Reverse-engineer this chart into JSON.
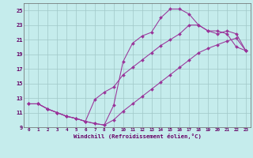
{
  "xlabel": "Windchill (Refroidissement éolien,°C)",
  "bg_color": "#c5ecec",
  "grid_color": "#a0c8c8",
  "line_color": "#993399",
  "xlim": [
    -0.5,
    23.5
  ],
  "ylim": [
    9,
    26
  ],
  "xticks": [
    0,
    1,
    2,
    3,
    4,
    5,
    6,
    7,
    8,
    9,
    10,
    11,
    12,
    13,
    14,
    15,
    16,
    17,
    18,
    19,
    20,
    21,
    22,
    23
  ],
  "yticks": [
    9,
    11,
    13,
    15,
    17,
    19,
    21,
    23,
    25
  ],
  "line1_x": [
    0,
    1,
    2,
    3,
    4,
    5,
    6,
    7,
    8,
    9,
    10,
    11,
    12,
    13,
    14,
    15,
    16,
    17,
    18,
    19,
    20,
    21,
    22,
    23
  ],
  "line1_y": [
    12.2,
    12.2,
    11.5,
    11.0,
    10.5,
    10.2,
    9.8,
    9.5,
    9.3,
    12.0,
    18.0,
    20.5,
    21.5,
    22.0,
    24.0,
    25.2,
    25.2,
    24.5,
    23.0,
    22.2,
    22.2,
    21.8,
    20.0,
    19.5
  ],
  "line2_x": [
    0,
    1,
    2,
    3,
    4,
    5,
    6,
    7,
    8,
    9,
    10,
    11,
    12,
    13,
    14,
    15,
    16,
    17,
    18,
    19,
    20,
    21,
    22,
    23
  ],
  "line2_y": [
    12.2,
    12.2,
    11.5,
    11.0,
    10.5,
    10.2,
    9.8,
    12.8,
    13.8,
    14.5,
    16.2,
    17.2,
    18.2,
    19.2,
    20.2,
    21.0,
    21.8,
    23.0,
    23.0,
    22.2,
    21.8,
    22.2,
    21.8,
    19.5
  ],
  "line3_x": [
    0,
    1,
    2,
    3,
    4,
    5,
    6,
    7,
    8,
    9,
    10,
    11,
    12,
    13,
    14,
    15,
    16,
    17,
    18,
    19,
    20,
    21,
    22,
    23
  ],
  "line3_y": [
    12.2,
    12.2,
    11.5,
    11.0,
    10.5,
    10.2,
    9.8,
    9.5,
    9.3,
    10.0,
    11.2,
    12.2,
    13.2,
    14.2,
    15.2,
    16.2,
    17.2,
    18.2,
    19.2,
    19.8,
    20.3,
    20.8,
    21.2,
    19.5
  ]
}
